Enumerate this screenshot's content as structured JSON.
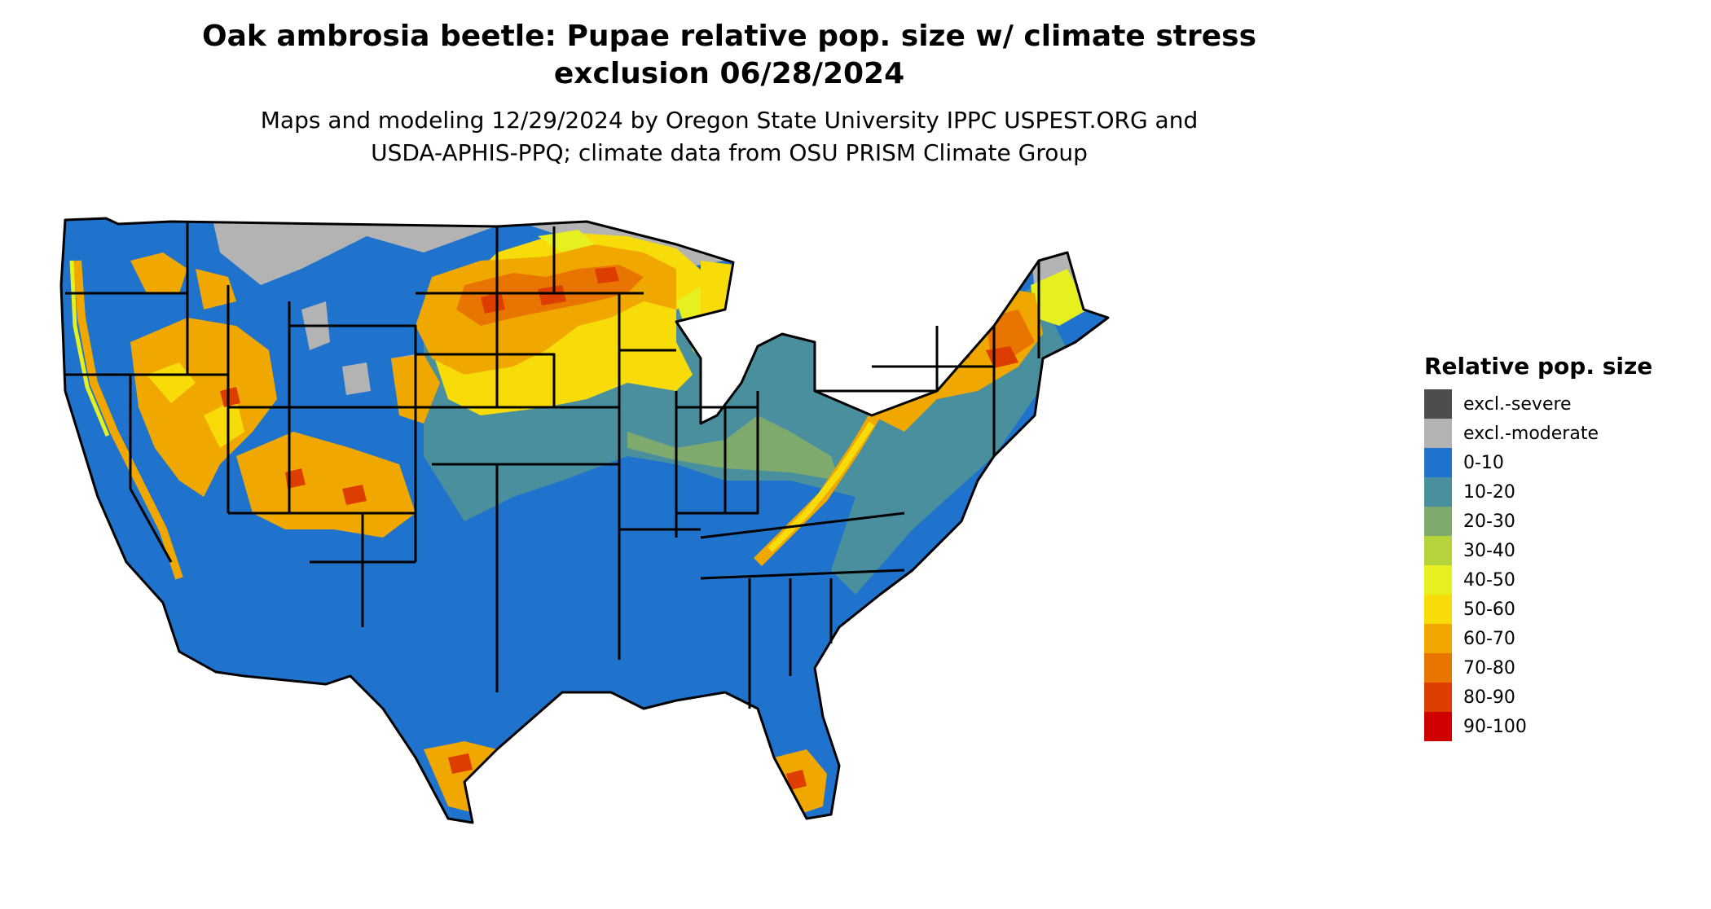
{
  "title": {
    "line1": "Oak ambrosia beetle: Pupae relative pop. size w/ climate stress",
    "line2": "exclusion 06/28/2024"
  },
  "subtitle": {
    "line1": "Maps and modeling 12/29/2024 by Oregon State University IPPC USPEST.ORG and",
    "line2": "USDA-APHIS-PPQ; climate data from OSU PRISM Climate Group"
  },
  "legend": {
    "title": "Relative pop. size",
    "items": [
      {
        "label": "excl.-severe",
        "color": "#4d4d4d"
      },
      {
        "label": "excl.-moderate",
        "color": "#b3b3b3"
      },
      {
        "label": "0-10",
        "color": "#1f73cc"
      },
      {
        "label": "10-20",
        "color": "#4a8f9e"
      },
      {
        "label": "20-30",
        "color": "#7faa6e"
      },
      {
        "label": "30-40",
        "color": "#b5d43c"
      },
      {
        "label": "40-50",
        "color": "#e6ef1f"
      },
      {
        "label": "50-60",
        "color": "#f7dc0a"
      },
      {
        "label": "60-70",
        "color": "#f0a800"
      },
      {
        "label": "70-80",
        "color": "#e87500"
      },
      {
        "label": "80-90",
        "color": "#de3d00"
      },
      {
        "label": "90-100",
        "color": "#d10000"
      }
    ]
  },
  "map": {
    "region": "contiguous United States",
    "border_color": "#000000",
    "ocean_color": "#ffffff"
  }
}
